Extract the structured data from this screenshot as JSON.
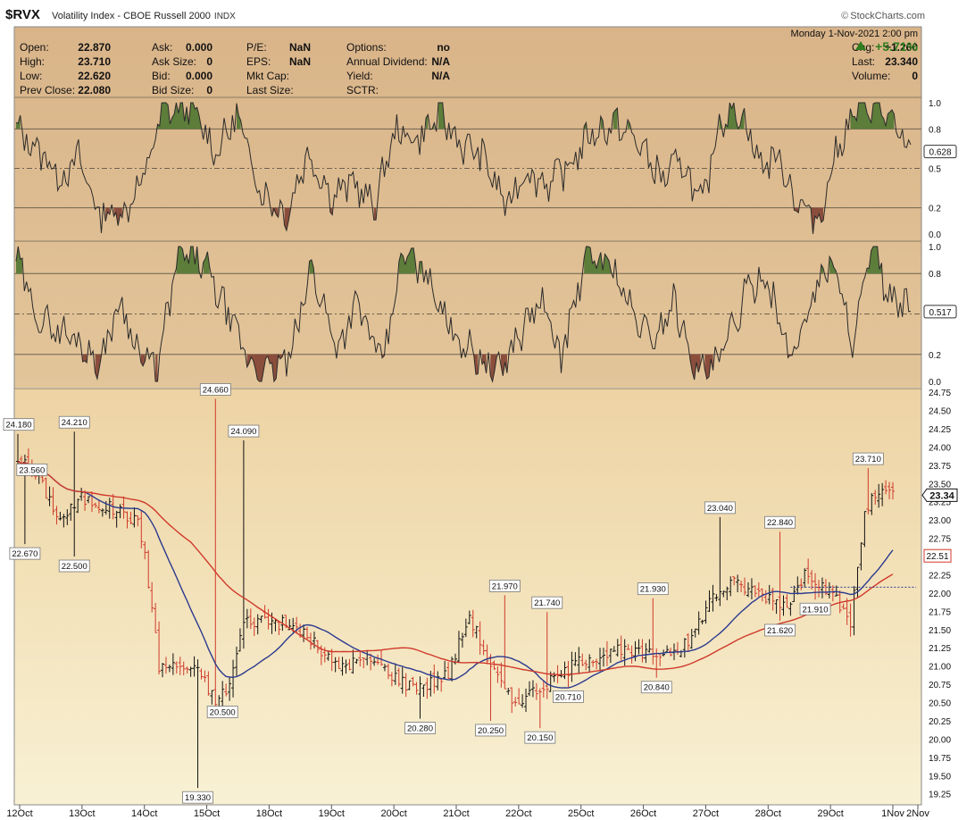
{
  "header": {
    "ticker": "$RVX",
    "name": "Volatility Index - CBOE Russell 2000",
    "exchange": "INDX",
    "brand": "StockCharts.com",
    "brand_icon": "copyright-icon",
    "datetime": "Monday  1-Nov-2021  2:00 pm",
    "change_percent": "+5.71%",
    "change_percent_color": "#2e7d1f"
  },
  "quote_table": [
    [
      {
        "label": "Open:",
        "value": "22.870"
      },
      {
        "label": "Ask:",
        "value": "0.000"
      },
      {
        "label": "P/E:",
        "value": "NaN"
      },
      {
        "label": "Options:",
        "value": "no"
      },
      {
        "label": "Chg:",
        "value": "+1.260"
      }
    ],
    [
      {
        "label": "High:",
        "value": "23.710"
      },
      {
        "label": "Ask Size:",
        "value": "0"
      },
      {
        "label": "EPS:",
        "value": "NaN"
      },
      {
        "label": "Annual Dividend:",
        "value": "N/A"
      },
      {
        "label": "Last:",
        "value": "23.340"
      }
    ],
    [
      {
        "label": "Low:",
        "value": "22.620"
      },
      {
        "label": "Bid:",
        "value": "0.000"
      },
      {
        "label": "Mkt Cap:",
        "value": ""
      },
      {
        "label": "Yield:",
        "value": "N/A"
      },
      {
        "label": "Volume:",
        "value": "0"
      }
    ],
    [
      {
        "label": "Prev Close:",
        "value": "22.080"
      },
      {
        "label": "Bid Size:",
        "value": "0"
      },
      {
        "label": "Last Size:",
        "value": ""
      },
      {
        "label": "SCTR:",
        "value": ""
      },
      {
        "label": "",
        "value": ""
      }
    ]
  ],
  "chart_data": [
    {
      "type": "area",
      "panel": "oscillator-1",
      "ylim": [
        0,
        1
      ],
      "yticks": [
        "0.0",
        "0.2",
        "0.5",
        "0.8",
        "1.0"
      ],
      "reference_lines": [
        0.2,
        0.5,
        0.8
      ],
      "last_value": "0.628",
      "colors": {
        "line": "#2a2a2a",
        "above": "#5d7d3a",
        "below": "#8b4e3c"
      },
      "series_anchors": [
        [
          0,
          0.8
        ],
        [
          12,
          0.62
        ],
        [
          22,
          0.42
        ],
        [
          30,
          0.58
        ],
        [
          40,
          0.15
        ],
        [
          52,
          0.17
        ],
        [
          62,
          0.45
        ],
        [
          70,
          0.92
        ],
        [
          84,
          0.98
        ],
        [
          96,
          0.62
        ],
        [
          106,
          0.9
        ],
        [
          118,
          0.32
        ],
        [
          130,
          0.14
        ],
        [
          140,
          0.62
        ],
        [
          152,
          0.28
        ],
        [
          162,
          0.4
        ],
        [
          172,
          0.2
        ],
        [
          182,
          0.78
        ],
        [
          192,
          0.72
        ],
        [
          204,
          0.9
        ],
        [
          214,
          0.68
        ],
        [
          224,
          0.6
        ],
        [
          236,
          0.2
        ],
        [
          244,
          0.48
        ],
        [
          256,
          0.38
        ],
        [
          266,
          0.52
        ],
        [
          276,
          0.76
        ],
        [
          288,
          0.84
        ],
        [
          298,
          0.72
        ],
        [
          310,
          0.42
        ],
        [
          320,
          0.55
        ],
        [
          330,
          0.2
        ],
        [
          338,
          0.88
        ],
        [
          348,
          0.95
        ],
        [
          358,
          0.52
        ],
        [
          366,
          0.6
        ],
        [
          376,
          0.22
        ],
        [
          386,
          0.1
        ],
        [
          394,
          0.62
        ],
        [
          404,
          0.95
        ],
        [
          414,
          1.0
        ],
        [
          424,
          0.75
        ],
        [
          430,
          0.62
        ]
      ],
      "date_span": [
        "12Oct",
        "1Nov"
      ]
    },
    {
      "type": "area",
      "panel": "oscillator-2",
      "ylim": [
        0,
        1
      ],
      "yticks": [
        "0.0",
        "0.2",
        "0.5",
        "0.8",
        "1.0"
      ],
      "reference_lines": [
        0.2,
        0.5,
        0.8
      ],
      "last_value": "0.517",
      "colors": {
        "line": "#2a2a2a",
        "above": "#5d7d3a",
        "below": "#8b4e3c"
      },
      "series_anchors": [
        [
          0,
          0.92
        ],
        [
          10,
          0.48
        ],
        [
          20,
          0.38
        ],
        [
          30,
          0.3
        ],
        [
          40,
          0.12
        ],
        [
          50,
          0.6
        ],
        [
          60,
          0.18
        ],
        [
          68,
          0.08
        ],
        [
          78,
          0.96
        ],
        [
          90,
          0.88
        ],
        [
          100,
          0.55
        ],
        [
          112,
          0.15
        ],
        [
          120,
          0.05
        ],
        [
          132,
          0.18
        ],
        [
          142,
          0.85
        ],
        [
          154,
          0.25
        ],
        [
          164,
          0.58
        ],
        [
          176,
          0.12
        ],
        [
          186,
          0.95
        ],
        [
          198,
          0.78
        ],
        [
          208,
          0.42
        ],
        [
          220,
          0.2
        ],
        [
          232,
          0.06
        ],
        [
          242,
          0.35
        ],
        [
          252,
          0.6
        ],
        [
          262,
          0.18
        ],
        [
          274,
          0.92
        ],
        [
          286,
          0.88
        ],
        [
          296,
          0.5
        ],
        [
          306,
          0.3
        ],
        [
          316,
          0.6
        ],
        [
          328,
          0.05
        ],
        [
          338,
          0.14
        ],
        [
          350,
          0.62
        ],
        [
          360,
          0.82
        ],
        [
          372,
          0.15
        ],
        [
          382,
          0.6
        ],
        [
          392,
          0.92
        ],
        [
          402,
          0.3
        ],
        [
          412,
          1.0
        ],
        [
          420,
          0.6
        ],
        [
          430,
          0.52
        ]
      ],
      "date_span": [
        "12Oct",
        "1Nov"
      ]
    },
    {
      "type": "bar",
      "subtype": "ohlc",
      "panel": "price",
      "ylim": [
        19.1,
        24.8
      ],
      "yticks": [
        "19.25",
        "19.50",
        "19.75",
        "20.00",
        "20.25",
        "20.50",
        "20.75",
        "21.00",
        "21.25",
        "21.50",
        "21.75",
        "22.00",
        "22.25",
        "22.50",
        "22.75",
        "23.00",
        "23.25",
        "23.50",
        "23.75",
        "24.00",
        "24.25",
        "24.50",
        "24.75"
      ],
      "x_dates": [
        "12Oct",
        "13Oct",
        "14Oct",
        "15Oct",
        "18Oct",
        "19Oct",
        "20Oct",
        "21Oct",
        "22Oct",
        "25Oct",
        "26Oct",
        "27Oct",
        "28Oct",
        "29Oct",
        "1Nov",
        "2Nov"
      ],
      "close_anchors": [
        [
          0,
          23.85
        ],
        [
          6,
          23.56
        ],
        [
          12,
          23.0
        ],
        [
          18,
          23.3
        ],
        [
          24,
          23.2
        ],
        [
          30,
          23.1
        ],
        [
          34,
          22.95
        ],
        [
          36,
          22.55
        ],
        [
          40,
          21.0
        ],
        [
          46,
          21.0
        ],
        [
          52,
          20.9
        ],
        [
          56,
          20.5
        ],
        [
          60,
          20.75
        ],
        [
          64,
          21.6
        ],
        [
          70,
          21.65
        ],
        [
          80,
          21.5
        ],
        [
          90,
          21.0
        ],
        [
          100,
          21.1
        ],
        [
          110,
          20.75
        ],
        [
          116,
          20.75
        ],
        [
          122,
          20.9
        ],
        [
          128,
          21.7
        ],
        [
          134,
          21.0
        ],
        [
          140,
          20.5
        ],
        [
          150,
          20.75
        ],
        [
          160,
          21.1
        ],
        [
          170,
          21.2
        ],
        [
          180,
          21.15
        ],
        [
          190,
          21.3
        ],
        [
          196,
          21.9
        ],
        [
          202,
          22.15
        ],
        [
          210,
          22.0
        ],
        [
          218,
          21.85
        ],
        [
          224,
          22.3
        ],
        [
          232,
          21.9
        ],
        [
          236,
          21.6
        ],
        [
          240,
          23.1
        ],
        [
          244,
          23.4
        ],
        [
          248,
          23.34
        ]
      ],
      "close_last_index": 248,
      "highlights": [
        {
          "i": 0,
          "label": "24.180",
          "price": 24.18,
          "pos": "above"
        },
        {
          "i": 4,
          "label": "23.560",
          "price": 23.56,
          "pos": "above"
        },
        {
          "i": 2,
          "label": "22.670",
          "price": 22.67,
          "pos": "below"
        },
        {
          "i": 16,
          "label": "24.210",
          "price": 24.21,
          "pos": "above"
        },
        {
          "i": 16,
          "label": "22.500",
          "price": 22.5,
          "pos": "below"
        },
        {
          "i": 56,
          "label": "24.660",
          "price": 24.66,
          "pos": "above"
        },
        {
          "i": 51,
          "label": "19.330",
          "price": 19.33,
          "pos": "below"
        },
        {
          "i": 64,
          "label": "24.090",
          "price": 24.09,
          "pos": "above"
        },
        {
          "i": 58,
          "label": "20.500",
          "price": 20.5,
          "pos": "below"
        },
        {
          "i": 114,
          "label": "20.280",
          "price": 20.28,
          "pos": "below"
        },
        {
          "i": 138,
          "label": "21.970",
          "price": 21.97,
          "pos": "above"
        },
        {
          "i": 134,
          "label": "20.250",
          "price": 20.25,
          "pos": "below"
        },
        {
          "i": 150,
          "label": "21.740",
          "price": 21.74,
          "pos": "above"
        },
        {
          "i": 148,
          "label": "20.150",
          "price": 20.15,
          "pos": "below"
        },
        {
          "i": 156,
          "label": "20.710",
          "price": 20.71,
          "pos": "below"
        },
        {
          "i": 180,
          "label": "21.930",
          "price": 21.93,
          "pos": "above"
        },
        {
          "i": 181,
          "label": "20.840",
          "price": 20.84,
          "pos": "below"
        },
        {
          "i": 199,
          "label": "23.040",
          "price": 23.04,
          "pos": "above"
        },
        {
          "i": 216,
          "label": "22.840",
          "price": 22.84,
          "pos": "above"
        },
        {
          "i": 216,
          "label": "21.620",
          "price": 21.62,
          "pos": "below"
        },
        {
          "i": 226,
          "label": "21.910",
          "price": 21.91,
          "pos": "below"
        },
        {
          "i": 241,
          "label": "23.710",
          "price": 23.71,
          "pos": "above"
        }
      ],
      "last_price_label": "23.34",
      "ma_last_label": "22.51",
      "prev_close_line": 22.08,
      "colors": {
        "up": "#111111",
        "down": "#d0392b",
        "ma_short": "#2b3a8f",
        "ma_long": "#d0392b"
      }
    }
  ]
}
